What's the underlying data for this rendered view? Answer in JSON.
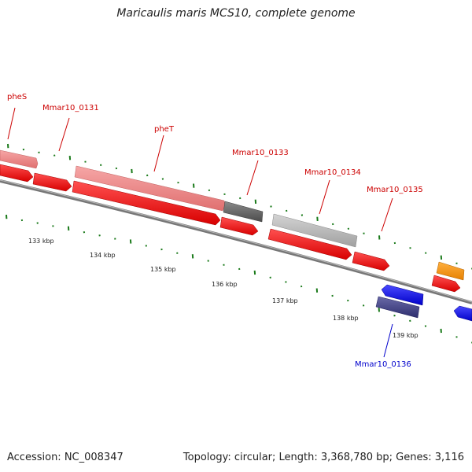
{
  "title": "Maricaulis maris MCS10, complete genome",
  "accession": "Accession: NC_008347",
  "summary": "Topology: circular; Length: 3,368,780 bp; Genes: 3,116",
  "colors": {
    "forward_cds": "#ff0000",
    "forward_cds_light": "#f08080",
    "reverse_cds": "#0000ff",
    "reverse_cds_dark": "#3a3a8a",
    "gray_feature": "#b0b0b0",
    "dark_gray_feature": "#606060",
    "rna_feature": "#ff9900",
    "tick": "#1a7a1a",
    "forward_label": "#cc0000",
    "reverse_label": "#0000cc",
    "backbone": "#7f7f7f"
  },
  "scale_ticks": [
    "133 kbp",
    "134 kbp",
    "135 kbp",
    "136 kbp",
    "137 kbp",
    "138 kbp",
    "139 kbp"
  ],
  "gene_labels": {
    "pheS": "pheS",
    "mmar131": "Mmar10_0131",
    "pheT": "pheT",
    "mmar133": "Mmar10_0133",
    "mmar134": "Mmar10_0134",
    "mmar135": "Mmar10_0135",
    "mmar136": "Mmar10_0136"
  }
}
